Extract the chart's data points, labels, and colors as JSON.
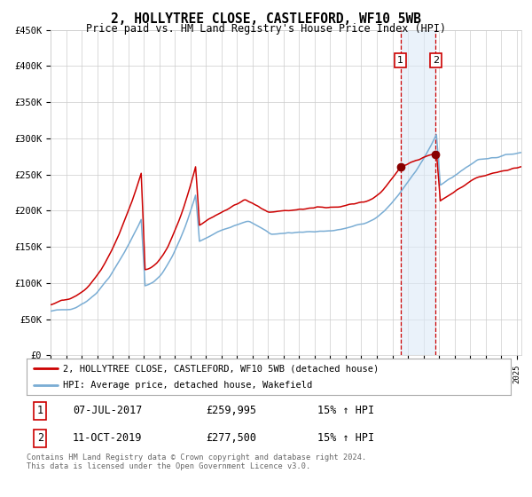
{
  "title": "2, HOLLYTREE CLOSE, CASTLEFORD, WF10 5WB",
  "subtitle": "Price paid vs. HM Land Registry's House Price Index (HPI)",
  "ylim": [
    0,
    450000
  ],
  "yticks": [
    0,
    50000,
    100000,
    150000,
    200000,
    250000,
    300000,
    350000,
    400000,
    450000
  ],
  "ytick_labels": [
    "£0",
    "£50K",
    "£100K",
    "£150K",
    "£200K",
    "£250K",
    "£300K",
    "£350K",
    "£400K",
    "£450K"
  ],
  "x_start_year": 1995,
  "x_end_year": 2025,
  "sale1_date": 2017.52,
  "sale1_price": 259995,
  "sale1_label": "1",
  "sale1_hpi": "15% ↑ HPI",
  "sale1_date_str": "07-JUL-2017",
  "sale2_date": 2019.78,
  "sale2_price": 277500,
  "sale2_label": "2",
  "sale2_hpi": "15% ↑ HPI",
  "sale2_date_str": "11-OCT-2019",
  "property_line_color": "#cc0000",
  "hpi_line_color": "#7aadd4",
  "highlight_fill_color": "#dceaf7",
  "highlight_fill_alpha": 0.6,
  "vline_color": "#cc0000",
  "marker_color": "#880000",
  "grid_color": "#cccccc",
  "bg_color": "#ffffff",
  "legend_property": "2, HOLLYTREE CLOSE, CASTLEFORD, WF10 5WB (detached house)",
  "legend_hpi": "HPI: Average price, detached house, Wakefield",
  "footer": "Contains HM Land Registry data © Crown copyright and database right 2024.\nThis data is licensed under the Open Government Licence v3.0."
}
